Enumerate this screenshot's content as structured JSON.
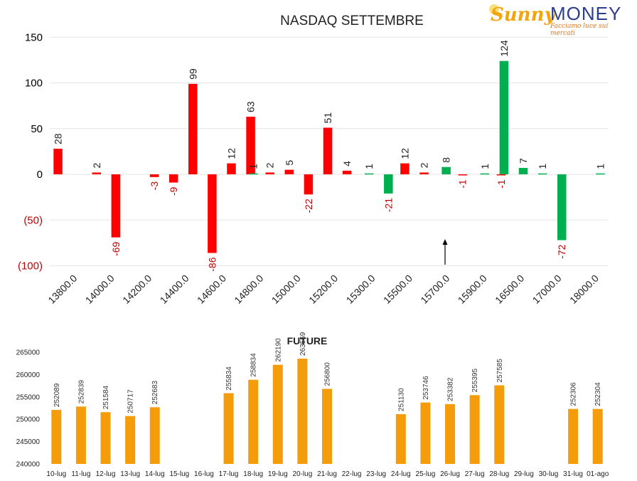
{
  "logo": {
    "brand_a": "Sunny",
    "brand_b": "MONEY",
    "tagline": "Facciamo luce sui mercati"
  },
  "colors": {
    "negative": "#ff0000",
    "positive": "#00b050",
    "future": "#f59c0b",
    "axis_text": "#000000",
    "neg_text": "#c00000"
  },
  "chart_data": [
    {
      "type": "bar",
      "title": "NASDAQ SETTEMBRE",
      "xlabel": "",
      "ylabel": "",
      "ylim": [
        -100,
        150
      ],
      "yticks": [
        "150",
        "100",
        "50",
        "0",
        "(50)",
        "(100)"
      ],
      "ytick_values": [
        150,
        100,
        50,
        0,
        -50,
        -100
      ],
      "xtick_labels": [
        "13800.0",
        "14000.0",
        "14200.0",
        "14400.0",
        "14600.0",
        "14800.0",
        "15000.0",
        "15200.0",
        "15300.0",
        "15500.0",
        "15700.0",
        "15900.0",
        "16500.0",
        "17000.0",
        "18000.0"
      ],
      "grid": true,
      "series": [
        {
          "color": "red",
          "values": [
            28,
            null,
            2,
            -69,
            null,
            -3,
            -9,
            99,
            -86,
            12,
            63,
            2,
            5,
            -22,
            51,
            4,
            null,
            null,
            12,
            2,
            null,
            -1,
            null,
            -1,
            null,
            null,
            null,
            null,
            null
          ],
          "labels": [
            "28",
            "",
            "2",
            "-69",
            "",
            "-3",
            "-9",
            "99",
            "-86",
            "12",
            "63",
            "2",
            "5",
            "-22",
            "51",
            "4",
            "",
            "",
            "12",
            "2",
            "",
            "-1",
            "",
            "-1",
            "",
            "",
            "",
            "",
            ""
          ]
        },
        {
          "color": "green",
          "values": [
            null,
            null,
            null,
            null,
            null,
            null,
            null,
            null,
            null,
            null,
            1,
            null,
            null,
            null,
            null,
            null,
            1,
            -21,
            null,
            null,
            8,
            null,
            1,
            124,
            7,
            1,
            -72,
            null,
            1
          ],
          "labels": [
            "",
            "",
            "",
            "",
            "",
            "",
            "",
            "",
            "",
            "",
            "1",
            "",
            "",
            "",
            "",
            "",
            "1",
            "-21",
            "",
            "",
            "8",
            "",
            "1",
            "124",
            "7",
            "1",
            "-72",
            "",
            "1"
          ]
        }
      ]
    },
    {
      "type": "bar",
      "title": "FUTURE",
      "xlabel": "",
      "ylabel": "",
      "ylim": [
        240000,
        265000
      ],
      "yticks": [
        "265000",
        "260000",
        "255000",
        "250000",
        "245000",
        "240000"
      ],
      "ytick_values": [
        265000,
        260000,
        255000,
        250000,
        245000,
        240000
      ],
      "categories": [
        "10-lug",
        "11-lug",
        "12-lug",
        "13-lug",
        "14-lug",
        "15-lug",
        "16-lug",
        "17-lug",
        "18-lug",
        "19-lug",
        "20-lug",
        "21-lug",
        "22-lug",
        "23-lug",
        "24-lug",
        "25-lug",
        "26-lug",
        "27-lug",
        "28-lug",
        "29-lug",
        "30-lug",
        "31-lug",
        "01-ago"
      ],
      "values": [
        252089,
        252839,
        251584,
        250717,
        252683,
        null,
        null,
        255834,
        258834,
        262190,
        263559,
        256800,
        null,
        null,
        251130,
        253746,
        253382,
        255395,
        257585,
        null,
        null,
        252306,
        252304
      ],
      "labels": [
        "252089",
        "252839",
        "251584",
        "250717",
        "252683",
        "",
        "",
        "255834",
        "258834",
        "262190",
        "263559",
        "256800",
        "",
        "",
        "251130",
        "253746",
        "253382",
        "255395",
        "257585",
        "",
        "",
        "252306",
        "252304"
      ],
      "grid": false
    }
  ]
}
